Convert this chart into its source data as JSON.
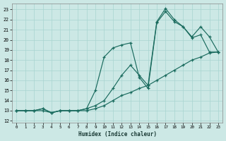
{
  "xlabel": "Humidex (Indice chaleur)",
  "bg_color": "#cce8e5",
  "grid_color": "#a8d5d0",
  "line_color": "#1a6b5e",
  "xlim": [
    -0.5,
    23.5
  ],
  "ylim": [
    11.8,
    23.6
  ],
  "yticks": [
    12,
    13,
    14,
    15,
    16,
    17,
    18,
    19,
    20,
    21,
    22,
    23
  ],
  "xticks": [
    0,
    1,
    2,
    3,
    4,
    5,
    6,
    7,
    8,
    9,
    10,
    11,
    12,
    13,
    14,
    15,
    16,
    17,
    18,
    19,
    20,
    21,
    22,
    23
  ],
  "series1_x": [
    0,
    1,
    2,
    3,
    4,
    5,
    6,
    7,
    8,
    9,
    10,
    11,
    12,
    13,
    14,
    15,
    16,
    17,
    18,
    19,
    20,
    21,
    22,
    23
  ],
  "series1_y": [
    13.0,
    13.0,
    13.0,
    13.0,
    12.8,
    13.0,
    13.0,
    13.0,
    13.0,
    13.2,
    13.5,
    14.0,
    14.5,
    14.8,
    15.2,
    15.5,
    16.0,
    16.5,
    17.0,
    17.5,
    18.0,
    18.3,
    18.7,
    18.8
  ],
  "series2_x": [
    0,
    1,
    2,
    3,
    4,
    5,
    6,
    7,
    8,
    9,
    10,
    11,
    12,
    13,
    14,
    15,
    16,
    17,
    18,
    19,
    20,
    21,
    22,
    23
  ],
  "series2_y": [
    13.0,
    13.0,
    13.0,
    13.2,
    12.8,
    13.0,
    13.0,
    13.0,
    13.2,
    13.5,
    14.0,
    15.2,
    16.5,
    17.5,
    16.5,
    15.5,
    21.8,
    23.1,
    22.0,
    21.3,
    20.3,
    21.3,
    20.3,
    18.8
  ],
  "series3_x": [
    0,
    1,
    2,
    3,
    4,
    5,
    6,
    7,
    8,
    9,
    10,
    11,
    12,
    13,
    14,
    15,
    16,
    17,
    18,
    19,
    20,
    21,
    22,
    23
  ],
  "series3_y": [
    13.0,
    13.0,
    13.0,
    13.2,
    12.8,
    13.0,
    13.0,
    13.0,
    13.2,
    15.0,
    18.3,
    19.2,
    19.5,
    19.7,
    16.3,
    15.2,
    21.7,
    22.8,
    21.8,
    21.3,
    20.2,
    20.5,
    18.8,
    18.8
  ]
}
